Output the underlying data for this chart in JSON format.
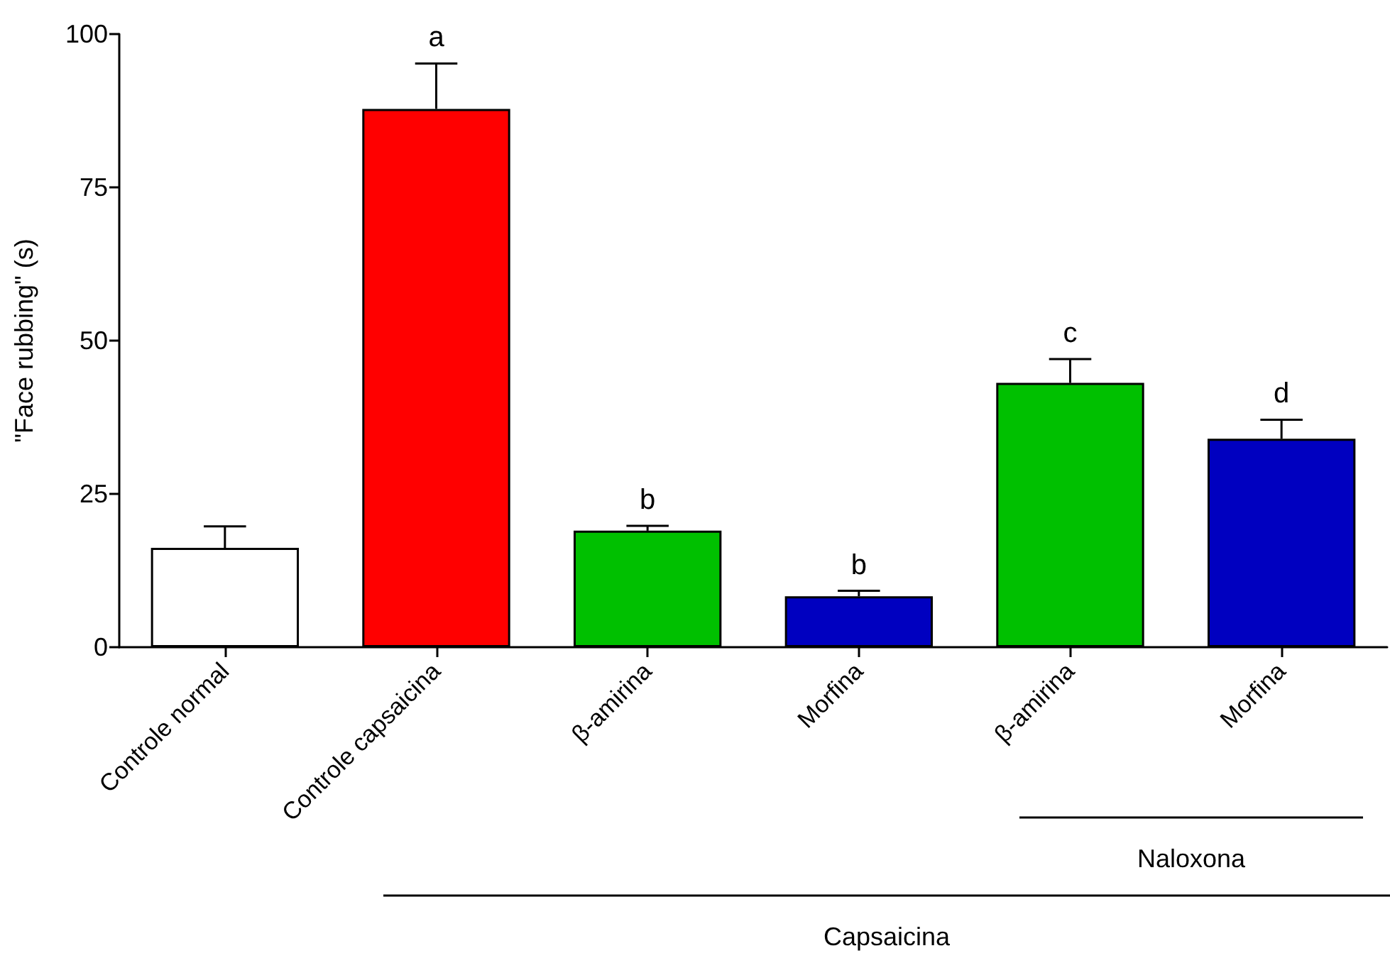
{
  "chart_data": {
    "type": "bar",
    "ylabel": "\"Face rubbing\" (s)",
    "categories": [
      "Controle normal",
      "Controle capsaicina",
      "β-amirina",
      "Morfina",
      "β-amirina",
      "Morfina"
    ],
    "values": [
      16.2,
      87.8,
      19.0,
      8.3,
      43.1,
      34.0
    ],
    "colors": [
      "#ffffff",
      "#ff0000",
      "#00c000",
      "#0000c0",
      "#00c000",
      "#0000c0"
    ],
    "errors": [
      [
        16.2,
        19.7
      ],
      [
        87.8,
        95.2
      ],
      [
        19.0,
        19.8
      ],
      [
        8.3,
        9.2
      ],
      [
        43.1,
        47.0
      ],
      [
        34.0,
        37.1
      ]
    ],
    "ylim": [
      0,
      100
    ],
    "yticks": [
      0,
      25,
      50,
      75,
      100
    ],
    "grid": false,
    "annotations": [
      {
        "text": "a",
        "x": "Controle capsaicina",
        "y": 95.2
      },
      {
        "text": "b",
        "x": "β-amirina",
        "y": 19.8
      },
      {
        "text": "b",
        "x": "Morfina",
        "y": 9.2
      },
      "c",
      "d",
      "Naloxona",
      "Capsaicina"
    ]
  }
}
